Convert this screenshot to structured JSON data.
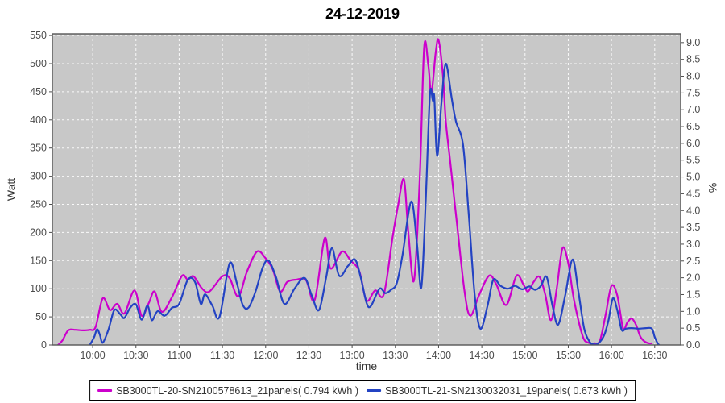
{
  "title": "24-12-2019",
  "axes": {
    "x_label": "time",
    "left_label": "Watt",
    "right_label": "%",
    "x_tick_labels": [
      "10:00",
      "10:30",
      "11:00",
      "11:30",
      "12:00",
      "12:30",
      "13:00",
      "13:30",
      "14:00",
      "14:30",
      "15:00",
      "15:30",
      "16:00",
      "16:30"
    ],
    "left_tick_labels": [
      "0",
      "50",
      "100",
      "150",
      "200",
      "250",
      "300",
      "350",
      "400",
      "450",
      "500",
      "550"
    ],
    "right_tick_labels": [
      "0.0",
      "0.5",
      "1.0",
      "1.5",
      "2.0",
      "2.5",
      "3.0",
      "3.5",
      "4.0",
      "4.5",
      "5.0",
      "5.5",
      "6.0",
      "6.5",
      "7.0",
      "7.5",
      "8.0",
      "8.5",
      "9.0"
    ]
  },
  "colors": {
    "series1": "#cc00cc",
    "series2": "#2343c3",
    "plot_bg": "#c8c8c8",
    "grid": "#ffffff",
    "plot_border": "#565656",
    "tick_text": "#4d4d4d",
    "title_text": "#000000"
  },
  "chart_data": {
    "type": "line",
    "title": "24-12-2019",
    "xlabel": "time",
    "ylabel_left": "Watt",
    "ylabel_right": "%",
    "x_unit": "minutes since midnight",
    "x_tick_minutes": [
      600,
      630,
      660,
      690,
      720,
      750,
      780,
      810,
      840,
      870,
      900,
      930,
      960,
      990
    ],
    "xlim_minutes": [
      572,
      1008
    ],
    "ylim_left": [
      0,
      553
    ],
    "ylim_right": [
      0,
      9.26
    ],
    "grid": "white dashed on gray",
    "legend_position": "bottom",
    "series": [
      {
        "name": "SB3000TL-20-SN2100578613_21panels( 0.794 kWh )",
        "color": "#cc00cc",
        "axis": "left",
        "energy_kwh": 0.794,
        "points": [
          [
            576,
            0
          ],
          [
            579,
            8
          ],
          [
            583,
            26
          ],
          [
            588,
            27
          ],
          [
            593,
            26
          ],
          [
            598,
            27
          ],
          [
            602,
            32
          ],
          [
            607,
            83
          ],
          [
            612,
            62
          ],
          [
            617,
            73
          ],
          [
            622,
            56
          ],
          [
            629,
            97
          ],
          [
            634,
            52
          ],
          [
            639,
            75
          ],
          [
            643,
            95
          ],
          [
            648,
            59
          ],
          [
            655,
            85
          ],
          [
            662,
            123
          ],
          [
            666,
            116
          ],
          [
            670,
            122
          ],
          [
            676,
            100
          ],
          [
            681,
            95
          ],
          [
            690,
            122
          ],
          [
            695,
            119
          ],
          [
            701,
            86
          ],
          [
            707,
            130
          ],
          [
            714,
            166
          ],
          [
            720,
            154
          ],
          [
            725,
            134
          ],
          [
            730,
            95
          ],
          [
            735,
            112
          ],
          [
            741,
            116
          ],
          [
            748,
            115
          ],
          [
            754,
            80
          ],
          [
            761,
            190
          ],
          [
            765,
            136
          ],
          [
            773,
            166
          ],
          [
            779,
            150
          ],
          [
            785,
            131
          ],
          [
            790,
            79
          ],
          [
            796,
            97
          ],
          [
            802,
            90
          ],
          [
            808,
            190
          ],
          [
            812,
            250
          ],
          [
            816,
            294
          ],
          [
            819,
            200
          ],
          [
            823,
            115
          ],
          [
            827,
            300
          ],
          [
            830,
            530
          ],
          [
            833,
            495
          ],
          [
            835,
            447
          ],
          [
            838,
            520
          ],
          [
            840,
            542
          ],
          [
            843,
            480
          ],
          [
            845,
            398
          ],
          [
            848,
            327
          ],
          [
            853,
            210
          ],
          [
            858,
            95
          ],
          [
            862,
            52
          ],
          [
            868,
            88
          ],
          [
            875,
            123
          ],
          [
            880,
            108
          ],
          [
            887,
            71
          ],
          [
            894,
            123
          ],
          [
            899,
            107
          ],
          [
            902,
            95
          ],
          [
            906,
            112
          ],
          [
            910,
            121
          ],
          [
            914,
            90
          ],
          [
            918,
            44
          ],
          [
            922,
            100
          ],
          [
            926,
            172
          ],
          [
            930,
            145
          ],
          [
            934,
            80
          ],
          [
            940,
            16
          ],
          [
            944,
            4
          ],
          [
            948,
            3
          ],
          [
            952,
            8
          ],
          [
            956,
            55
          ],
          [
            960,
            105
          ],
          [
            964,
            88
          ],
          [
            968,
            30
          ],
          [
            971,
            40
          ],
          [
            974,
            47
          ],
          [
            977,
            36
          ],
          [
            980,
            15
          ],
          [
            983,
            6
          ],
          [
            986,
            3
          ],
          [
            988,
            3
          ]
        ]
      },
      {
        "name": "SB3000TL-21-SN2130032031_19panels( 0.673 kWh )",
        "color": "#2343c3",
        "axis": "left",
        "energy_kwh": 0.673,
        "points": [
          [
            598,
            0
          ],
          [
            601,
            14
          ],
          [
            603,
            28
          ],
          [
            605,
            18
          ],
          [
            607,
            4
          ],
          [
            611,
            28
          ],
          [
            615,
            62
          ],
          [
            619,
            55
          ],
          [
            622,
            48
          ],
          [
            626,
            66
          ],
          [
            630,
            72
          ],
          [
            634,
            45
          ],
          [
            638,
            70
          ],
          [
            641,
            44
          ],
          [
            645,
            60
          ],
          [
            650,
            52
          ],
          [
            655,
            66
          ],
          [
            660,
            73
          ],
          [
            666,
            116
          ],
          [
            671,
            112
          ],
          [
            675,
            73
          ],
          [
            678,
            90
          ],
          [
            683,
            70
          ],
          [
            688,
            50
          ],
          [
            695,
            145
          ],
          [
            700,
            110
          ],
          [
            704,
            72
          ],
          [
            708,
            66
          ],
          [
            713,
            95
          ],
          [
            718,
            138
          ],
          [
            722,
            150
          ],
          [
            727,
            122
          ],
          [
            733,
            73
          ],
          [
            740,
            100
          ],
          [
            747,
            119
          ],
          [
            752,
            88
          ],
          [
            757,
            62
          ],
          [
            762,
            120
          ],
          [
            766,
            172
          ],
          [
            771,
            123
          ],
          [
            777,
            140
          ],
          [
            782,
            152
          ],
          [
            786,
            120
          ],
          [
            790,
            75
          ],
          [
            793,
            69
          ],
          [
            799,
            100
          ],
          [
            803,
            92
          ],
          [
            807,
            98
          ],
          [
            811,
            110
          ],
          [
            815,
            160
          ],
          [
            821,
            255
          ],
          [
            825,
            180
          ],
          [
            828,
            102
          ],
          [
            831,
            250
          ],
          [
            834,
            444
          ],
          [
            836,
            434
          ],
          [
            837,
            441
          ],
          [
            839,
            336
          ],
          [
            842,
            430
          ],
          [
            845,
            500
          ],
          [
            849,
            440
          ],
          [
            852,
            398
          ],
          [
            857,
            355
          ],
          [
            861,
            230
          ],
          [
            865,
            90
          ],
          [
            869,
            29
          ],
          [
            874,
            70
          ],
          [
            878,
            116
          ],
          [
            883,
            105
          ],
          [
            888,
            100
          ],
          [
            893,
            105
          ],
          [
            898,
            99
          ],
          [
            903,
            104
          ],
          [
            907,
            98
          ],
          [
            911,
            105
          ],
          [
            915,
            121
          ],
          [
            919,
            70
          ],
          [
            923,
            36
          ],
          [
            928,
            90
          ],
          [
            933,
            152
          ],
          [
            937,
            95
          ],
          [
            941,
            30
          ],
          [
            945,
            5
          ],
          [
            948,
            1
          ],
          [
            951,
            3
          ],
          [
            955,
            18
          ],
          [
            958,
            45
          ],
          [
            961,
            83
          ],
          [
            964,
            62
          ],
          [
            967,
            27
          ],
          [
            970,
            29
          ],
          [
            974,
            30
          ],
          [
            979,
            29
          ],
          [
            984,
            30
          ],
          [
            988,
            29
          ],
          [
            990,
            14
          ],
          [
            992,
            3
          ],
          [
            993,
            0
          ]
        ]
      }
    ]
  }
}
